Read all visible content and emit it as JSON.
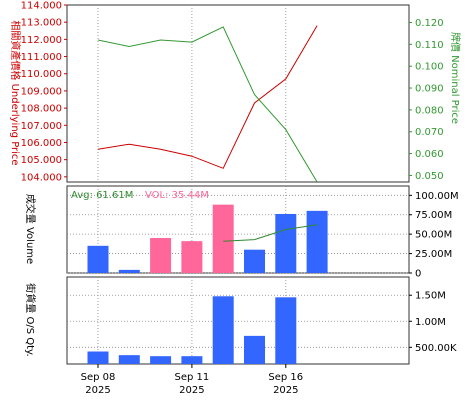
{
  "colors": {
    "underlying": "#cc0000",
    "nominal": "#339933",
    "volume_up": "#3366ff",
    "volume_down": "#ff6699",
    "avg_line": "#2e8b2e",
    "os_bar": "#3366ff"
  },
  "chart_data": [
    {
      "type": "line",
      "ylabel_left": "相關資產價格 Underlying Price",
      "ylabel_right": "牌價 Nominal Price",
      "x_index": [
        0,
        1,
        2,
        3,
        4,
        5,
        6,
        7
      ],
      "y_left_ticks": [
        "104.000",
        "105.000",
        "106.000",
        "107.000",
        "108.000",
        "109.000",
        "110.000",
        "111.000",
        "112.000",
        "113.000",
        "114.000"
      ],
      "y_left_range": [
        103.7,
        114.0
      ],
      "y_right_ticks": [
        "0.050",
        "0.060",
        "0.070",
        "0.080",
        "0.090",
        "0.100",
        "0.110",
        "0.120"
      ],
      "y_right_range": [
        0.047,
        0.128
      ],
      "series": [
        {
          "name": "Underlying Price",
          "axis": "left",
          "values": [
            105.6,
            105.9,
            105.6,
            105.2,
            104.5,
            108.3,
            109.7,
            112.8
          ]
        },
        {
          "name": "Nominal Price",
          "axis": "right",
          "values": [
            0.112,
            0.109,
            0.112,
            0.111,
            0.118,
            0.087,
            0.071,
            0.047
          ]
        }
      ],
      "grid": true
    },
    {
      "type": "bar",
      "ylabel": "成交量 Volume",
      "avg_label": "Avg: 61.61M",
      "vol_label": "VOL: 35.44M",
      "y_ticks": [
        "0",
        "25.00M",
        "50.00M",
        "75.00M",
        "100.00M"
      ],
      "y_range": [
        0,
        112
      ],
      "bars": [
        {
          "x": 0,
          "value": 35,
          "dir": "up"
        },
        {
          "x": 1,
          "value": 4,
          "dir": "up"
        },
        {
          "x": 2,
          "value": 45,
          "dir": "down"
        },
        {
          "x": 3,
          "value": 41,
          "dir": "down"
        },
        {
          "x": 4,
          "value": 88,
          "dir": "down"
        },
        {
          "x": 5,
          "value": 30,
          "dir": "up"
        },
        {
          "x": 6,
          "value": 76,
          "dir": "up"
        },
        {
          "x": 7,
          "value": 80,
          "dir": "up"
        }
      ],
      "avg_line": [
        {
          "x": 4,
          "value": 41
        },
        {
          "x": 5,
          "value": 43
        },
        {
          "x": 6,
          "value": 56
        },
        {
          "x": 7,
          "value": 62
        }
      ],
      "grid": true
    },
    {
      "type": "bar",
      "ylabel": "街貨量 O/S Qty.",
      "y_ticks": [
        "500.00K",
        "1.00M",
        "1.50M"
      ],
      "y_range": [
        180,
        1850
      ],
      "bars": [
        {
          "x": 0,
          "value": 420
        },
        {
          "x": 1,
          "value": 350
        },
        {
          "x": 2,
          "value": 330
        },
        {
          "x": 3,
          "value": 330
        },
        {
          "x": 4,
          "value": 1480
        },
        {
          "x": 5,
          "value": 720
        },
        {
          "x": 6,
          "value": 1460
        }
      ],
      "grid": true
    }
  ],
  "x_axis": {
    "labels": [
      {
        "x": 0,
        "line1": "Sep 08",
        "line2": "2025"
      },
      {
        "x": 3,
        "line1": "Sep 11",
        "line2": "2025"
      },
      {
        "x": 6,
        "line1": "Sep 16",
        "line2": "2025"
      }
    ]
  }
}
